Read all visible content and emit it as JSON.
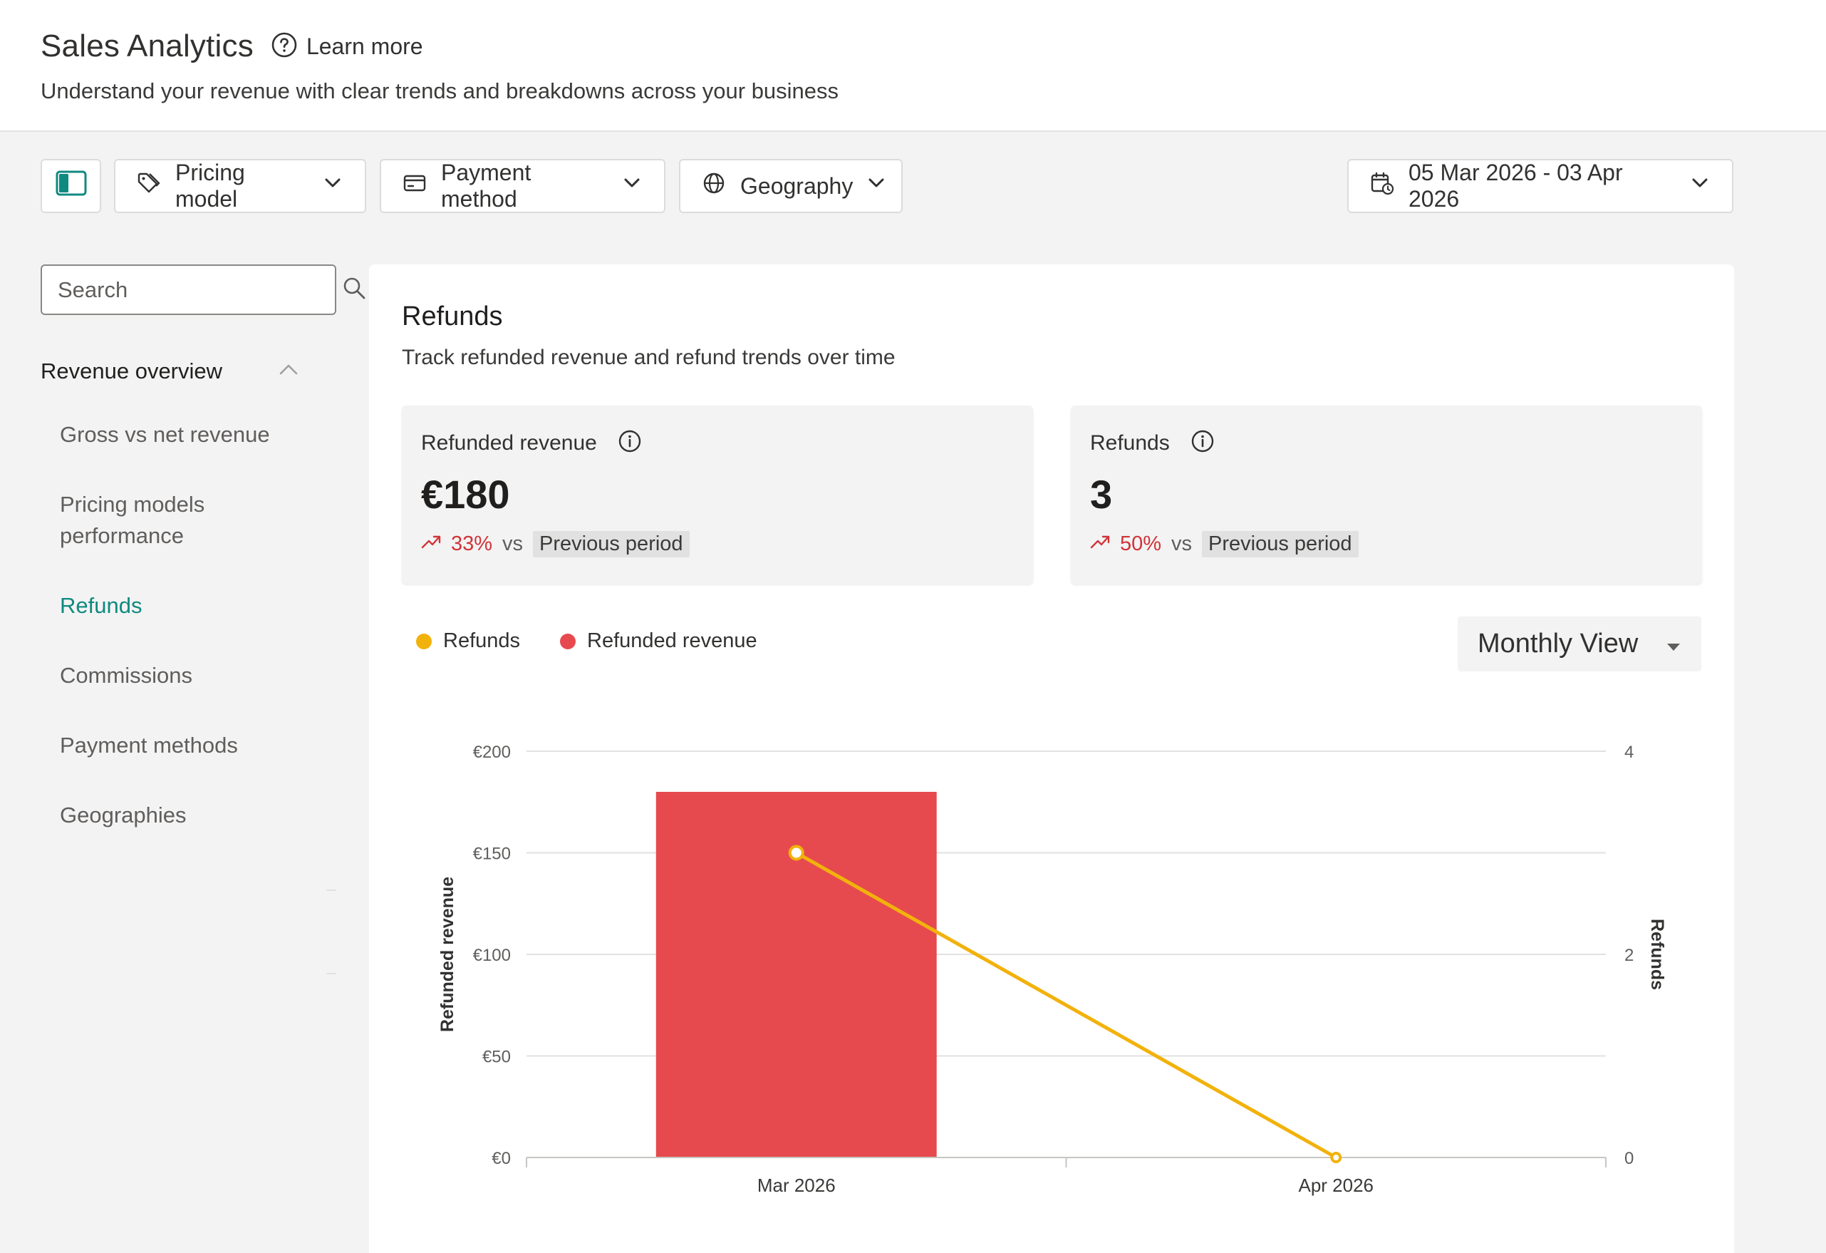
{
  "header": {
    "title": "Sales Analytics",
    "learn_more": "Learn more",
    "subtitle": "Understand your revenue with clear trends and breakdowns across your business"
  },
  "toolbar": {
    "panel_toggle_icon": "panel-toggle-icon",
    "filters": [
      {
        "label": "Pricing model",
        "icon": "tag-icon"
      },
      {
        "label": "Payment method",
        "icon": "credit-card-icon"
      },
      {
        "label": "Geography",
        "icon": "globe-icon"
      }
    ],
    "date_range": {
      "label": "05 Mar 2026 - 03 Apr 2026",
      "icon": "calendar-icon"
    }
  },
  "sidebar": {
    "search": {
      "placeholder": "Search",
      "value": ""
    },
    "section": {
      "title": "Revenue overview",
      "expanded": true
    },
    "items": [
      {
        "label": "Gross vs net revenue",
        "active": false
      },
      {
        "label": "Pricing models performance",
        "active": false
      },
      {
        "label": "Refunds",
        "active": true
      },
      {
        "label": "Commissions",
        "active": false
      },
      {
        "label": "Payment methods",
        "active": false
      },
      {
        "label": "Geographies",
        "active": false
      }
    ]
  },
  "main": {
    "title": "Refunds",
    "subtitle": "Track refunded revenue and refund trends over time",
    "kpis": [
      {
        "label": "Refunded revenue",
        "value": "€180",
        "delta": "33%",
        "vs": "vs",
        "comparison": "Previous period",
        "trend": "up"
      },
      {
        "label": "Refunds",
        "value": "3",
        "delta": "50%",
        "vs": "vs",
        "comparison": "Previous period",
        "trend": "up"
      }
    ],
    "view_select": {
      "selected": "Monthly View"
    }
  },
  "colors": {
    "accent": "#0f8a80",
    "refunds_series": "#f2b20c",
    "revenue_series": "#e64a4e",
    "trend_negative": "#d13438"
  },
  "chart_data": {
    "type": "bar",
    "categories": [
      "Mar 2026",
      "Apr 2026"
    ],
    "series": [
      {
        "name": "Refunded revenue",
        "type": "bar",
        "axis": "left",
        "values": [
          180,
          0
        ]
      },
      {
        "name": "Refunds",
        "type": "line",
        "axis": "right",
        "values": [
          3,
          0
        ]
      }
    ],
    "ylabel": "Refunded revenue",
    "y2label": "Refunds",
    "ylim": [
      0,
      200
    ],
    "y2lim": [
      0,
      4
    ],
    "yticks": [
      "€0",
      "€50",
      "€100",
      "€150",
      "€200"
    ],
    "y2ticks": [
      "0",
      "2",
      "4"
    ],
    "legend": [
      "Refunds",
      "Refunded revenue"
    ],
    "legend_position": "top-left",
    "grid": true
  }
}
